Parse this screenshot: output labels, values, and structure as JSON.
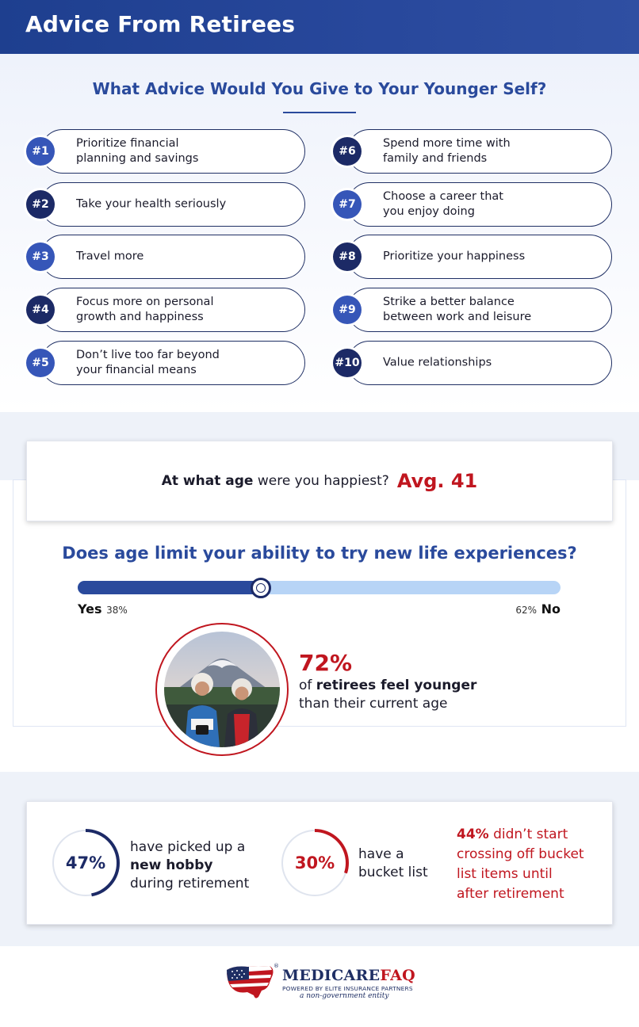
{
  "header": {
    "title": "Advice From Retirees"
  },
  "advice": {
    "title": "What Advice Would You Give to Your Younger Self?",
    "items": [
      {
        "num": "#1",
        "text": "Prioritize financial\nplanning and savings"
      },
      {
        "num": "#2",
        "text": "Take your health seriously"
      },
      {
        "num": "#3",
        "text": "Travel more"
      },
      {
        "num": "#4",
        "text": "Focus more on personal\ngrowth and happiness"
      },
      {
        "num": "#5",
        "text": "Don’t live too far beyond\nyour financial means"
      },
      {
        "num": "#6",
        "text": "Spend more time with\nfamily and friends"
      },
      {
        "num": "#7",
        "text": "Choose a career that\nyou enjoy doing"
      },
      {
        "num": "#8",
        "text": "Prioritize your happiness"
      },
      {
        "num": "#9",
        "text": "Strike a better balance\nbetween work and leisure"
      },
      {
        "num": "#10",
        "text": "Value relationships"
      }
    ]
  },
  "happiest": {
    "question_bold": "At what age",
    "question_rest": " were you happiest?",
    "answer": "Avg. 41"
  },
  "age_limit": {
    "question": "Does age limit your ability to try new life experiences?",
    "yes_label": "Yes",
    "yes_pct": "38%",
    "no_label": "No",
    "no_pct": "62%",
    "yes_fraction": 0.38
  },
  "younger": {
    "pct": "72%",
    "line1_pre": "of ",
    "line1_bold": "retirees feel younger",
    "line2": "than their current age"
  },
  "stats": {
    "hobby": {
      "pct": "47%",
      "fraction": 0.47,
      "l1": "have picked up a",
      "l2": "new hobby",
      "l3": "during retirement"
    },
    "bucket": {
      "pct": "30%",
      "fraction": 0.3,
      "l1": "have a",
      "l2": "bucket list"
    },
    "late": {
      "pct": "44%",
      "rest1": " didn’t start",
      "l2": "crossing off bucket",
      "l3": "list items until",
      "l4": "after retirement"
    }
  },
  "logo": {
    "name_a": "MEDICARE",
    "name_b": "FAQ",
    "reg": "®",
    "sub": "POWERED BY ELITE INSURANCE PARTNERS",
    "sub2": "a non-government entity"
  },
  "colors": {
    "navy": "#1c2a66",
    "blue": "#2a4a9c",
    "red": "#c0161f",
    "light_blue": "#b7d4f6"
  }
}
